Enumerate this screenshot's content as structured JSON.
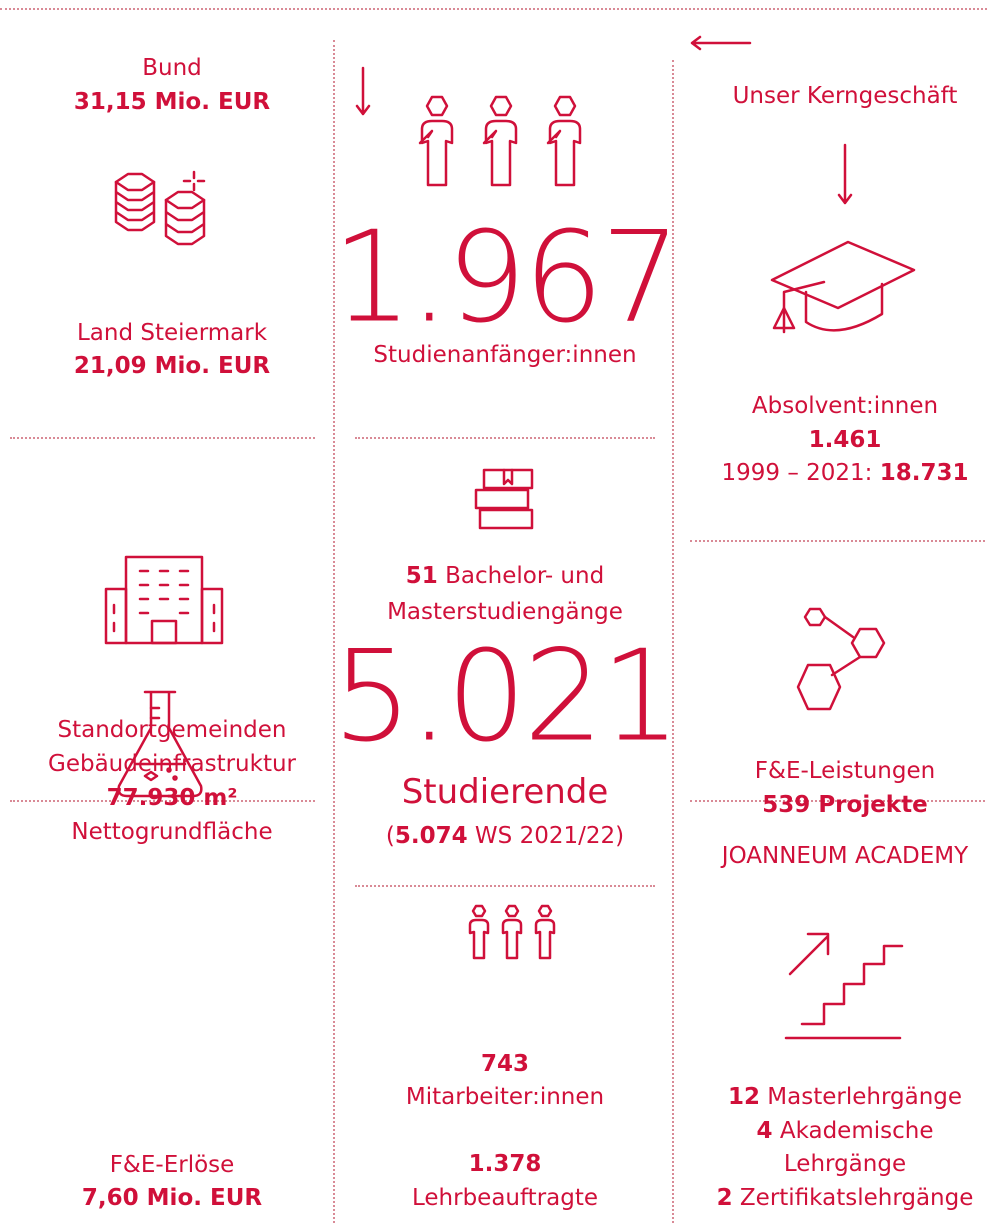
{
  "left": {
    "bund": {
      "label": "Bund",
      "amount": "31,15 Mio. EUR"
    },
    "land": {
      "label": "Land Steiermark",
      "amount": "21,09 Mio. EUR"
    },
    "infrastructure": {
      "line1": "Standortgemeinden",
      "line2": "Gebäudeinfrastruktur",
      "area": "77.930 m²",
      "area_label": "Nettogrundfläche"
    },
    "revenue": {
      "label": "F&E-Erlöse",
      "amount": "7,60 Mio. EUR"
    }
  },
  "middle": {
    "beginners": {
      "number": "1.967",
      "label": "Studienanfänger:innen"
    },
    "programs": {
      "count": "51",
      "line1": " Bachelor- und",
      "line2": "Masterstudiengänge"
    },
    "students": {
      "number": "5.021",
      "label": "Studierende",
      "note_open": "(",
      "note_count": "5.074",
      "note_rest": " WS 2021/22)"
    },
    "staff": {
      "count": "743",
      "label": "Mitarbeiter:innen",
      "lecturers_count": "1.378",
      "lecturers_label": "Lehrbeauftragte"
    }
  },
  "right": {
    "heading": "Unser Kerngeschäft",
    "graduates": {
      "label": "Absolvent:innen",
      "count": "1.461",
      "period": "1999 – 2021: ",
      "total": "18.731"
    },
    "research": {
      "label": "F&E-Leistungen",
      "projects": "539 Projekte"
    },
    "academy": {
      "title": "JOANNEUM ACADEMY",
      "lines": [
        {
          "count": "12",
          "text": " Masterlehrgänge"
        },
        {
          "count": "4",
          "text": " Akademische"
        },
        {
          "count": "",
          "text": "Lehrgänge"
        },
        {
          "count": "2",
          "text": " Zertifikatslehrgänge"
        }
      ]
    }
  }
}
